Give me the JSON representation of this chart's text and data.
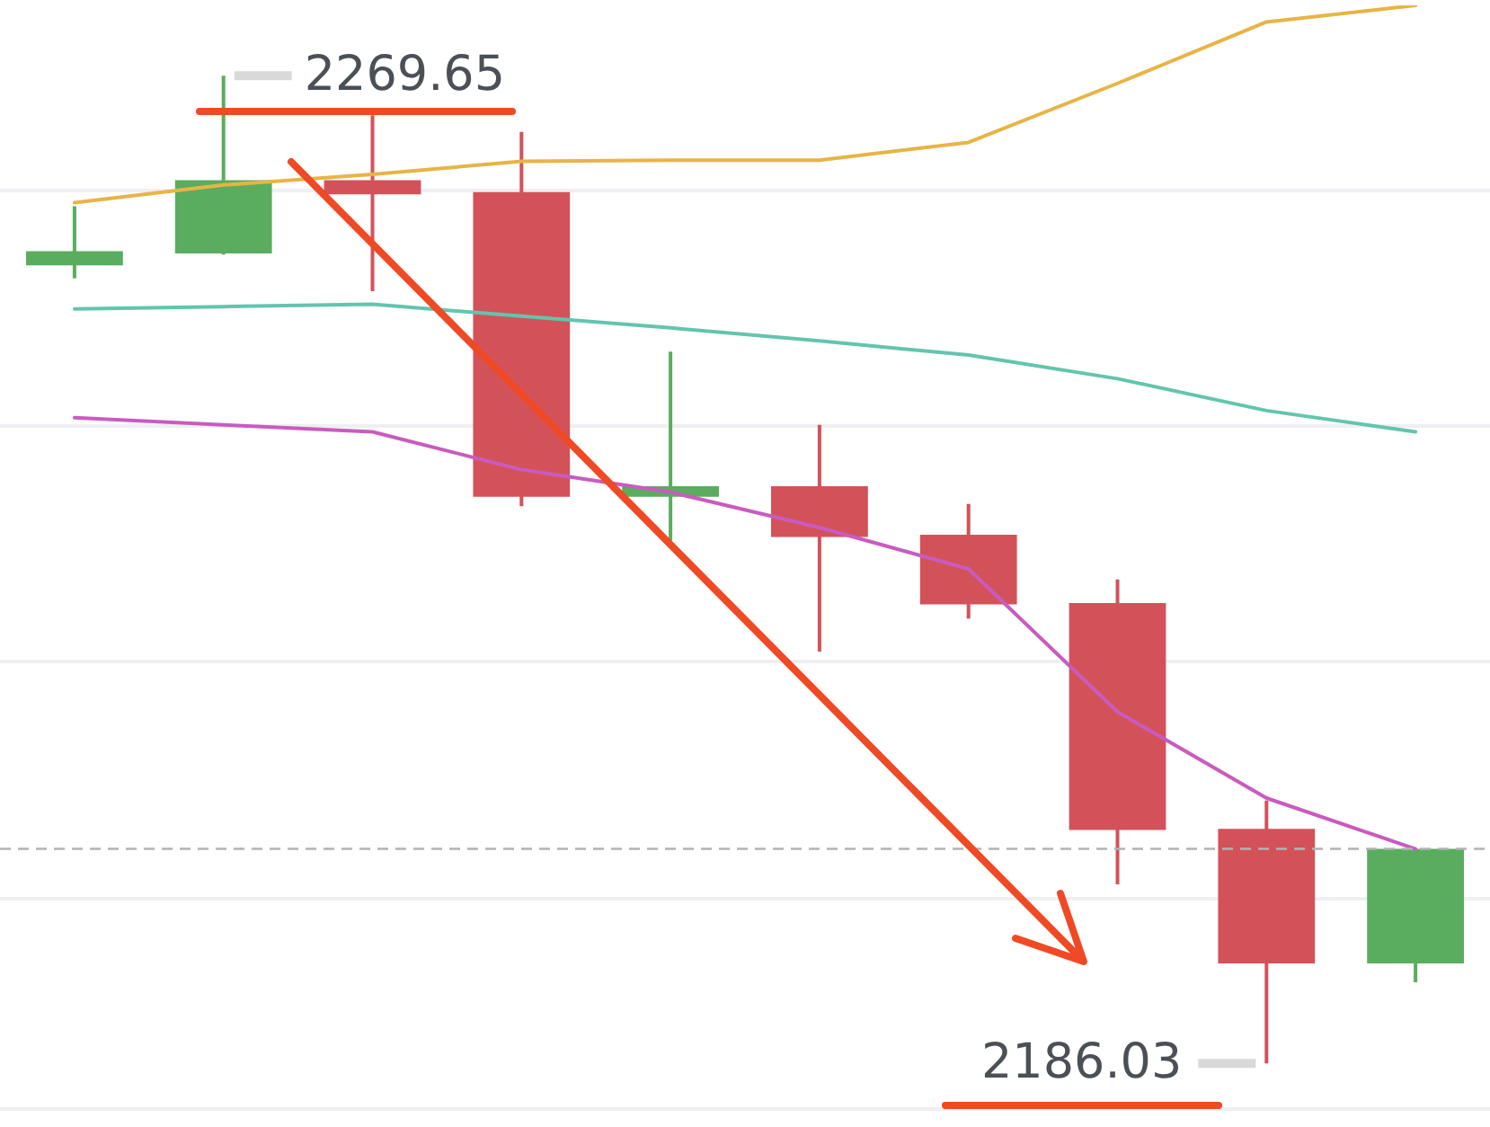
{
  "chart_data": {
    "type": "candlestick",
    "categories": [
      null,
      null,
      null,
      null,
      null,
      null,
      null,
      null,
      null,
      null
    ],
    "ohlc": [
      [
        2253.6,
        2258.6,
        2252.5,
        2254.8
      ],
      [
        2254.6,
        2269.65,
        2254.5,
        2260.8
      ],
      [
        2260.8,
        2266.3,
        2251.4,
        2259.6
      ],
      [
        2259.8,
        2264.9,
        2233.2,
        2234.0
      ],
      [
        2234.0,
        2246.3,
        2230.3,
        2234.9
      ],
      [
        2234.9,
        2240.1,
        2220.9,
        2230.6
      ],
      [
        2230.8,
        2233.4,
        2223.7,
        2224.9
      ],
      [
        2225.0,
        2227.0,
        2201.2,
        2205.8
      ],
      [
        2205.9,
        2208.3,
        2186.03,
        2194.5
      ],
      [
        2194.5,
        2204.2,
        2192.9,
        2204.2
      ]
    ],
    "colors": [
      "#5aad5e",
      "#5aad5e",
      "#d3525a",
      "#d3525a",
      "#5aad5e",
      "#d3525a",
      "#d3525a",
      "#d3525a",
      "#d3525a",
      "#5aad5e"
    ],
    "series": [
      {
        "type": "line",
        "color": "#e8b445",
        "values": [
          2258.9,
          2260.4,
          2261.3,
          2262.4,
          2262.5,
          2262.5,
          2264.0,
          2269.0,
          2274.2,
          2275.6
        ]
      },
      {
        "type": "line",
        "color": "#62c5ad",
        "values": [
          2249.9,
          2250.1,
          2250.3,
          2249.3,
          2248.3,
          2247.2,
          2246.0,
          2244.0,
          2241.3,
          2239.5
        ]
      },
      {
        "type": "line",
        "color": "#c95bbf",
        "values": [
          2240.7,
          2240.1,
          2239.5,
          2236.3,
          2234.4,
          2231.4,
          2227.9,
          2215.8,
          2208.5,
          2204.2
        ]
      }
    ],
    "yticks": [
      {
        "value": 2200,
        "label": null
      },
      {
        "value": 2220,
        "label": null
      },
      {
        "value": 2240,
        "label": null
      },
      {
        "value": 2260,
        "label": null
      }
    ],
    "grid": "y",
    "tick_labels": false,
    "ref_lines": [
      {
        "axis": "y",
        "value": 2204.2,
        "color": "#b3b3b3",
        "line_style": "dashed"
      }
    ],
    "annotations": [
      "2269.65",
      "2186.03"
    ]
  }
}
